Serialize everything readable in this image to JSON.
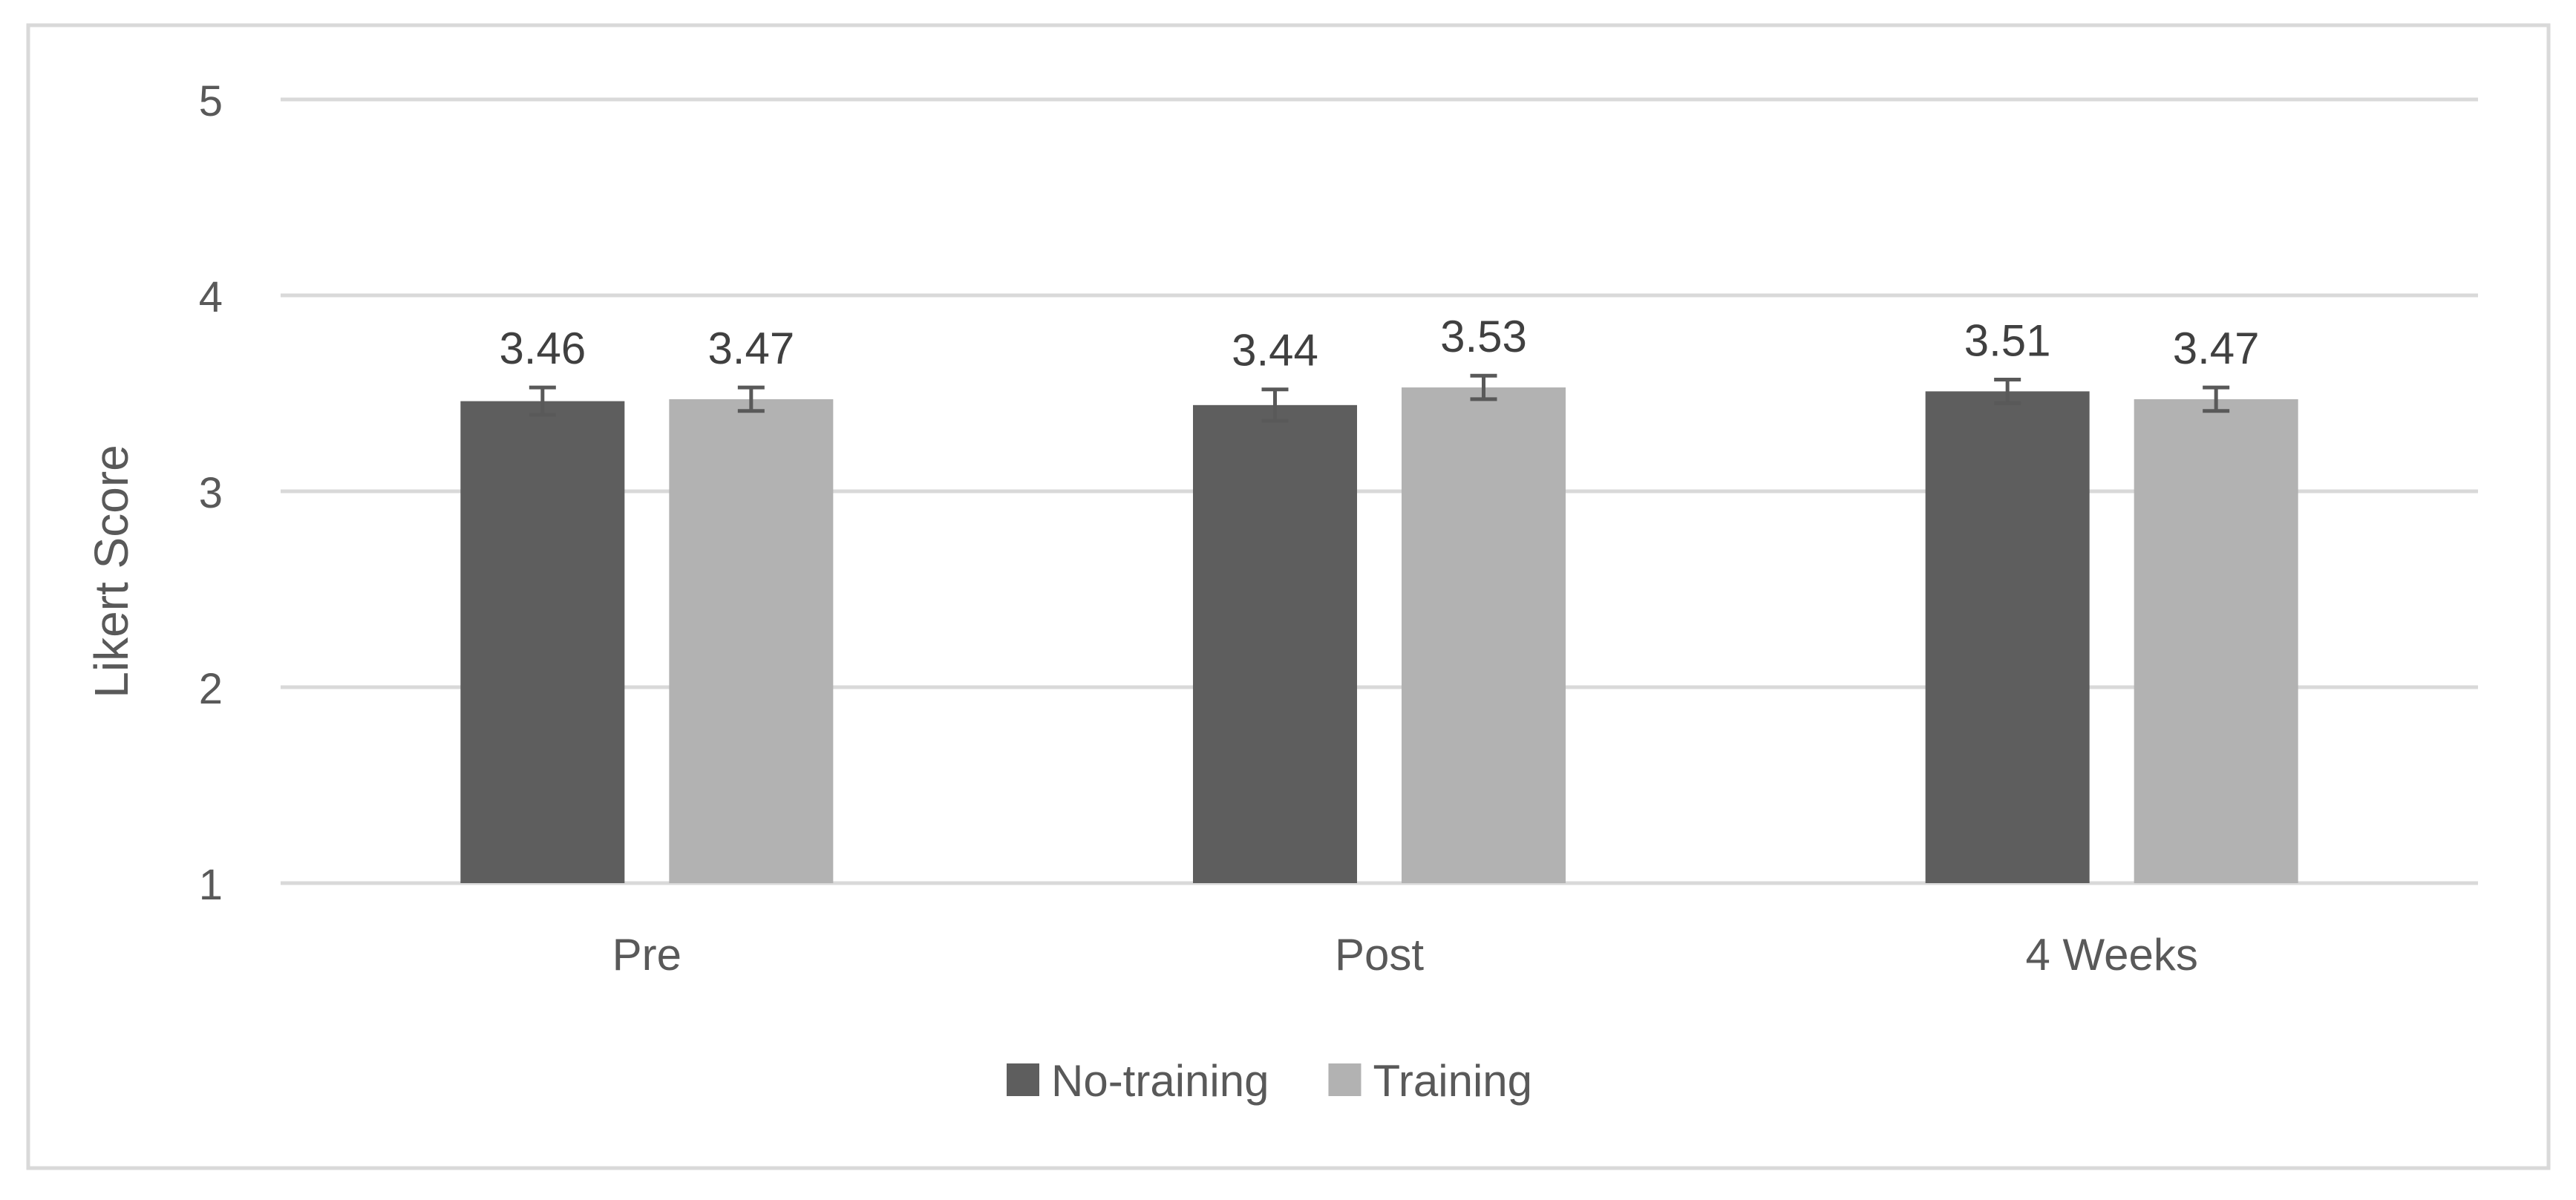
{
  "chart_data": {
    "type": "bar",
    "title": "",
    "xlabel": "",
    "ylabel": "Likert Score",
    "ylim": [
      1,
      5
    ],
    "yticks": [
      "1",
      "2",
      "3",
      "4",
      "5"
    ],
    "categories": [
      "Pre",
      "Post",
      "4 Weeks"
    ],
    "series": [
      {
        "name": "No-training",
        "color": "#5e5e5e",
        "values": [
          3.46,
          3.44,
          3.51
        ],
        "labels": [
          "3.46",
          "3.44",
          "3.51"
        ],
        "error": [
          0.07,
          0.08,
          0.06
        ]
      },
      {
        "name": "Training",
        "color": "#b2b2b2",
        "values": [
          3.47,
          3.53,
          3.47
        ],
        "labels": [
          "3.47",
          "3.53",
          "3.47"
        ],
        "error": [
          0.06,
          0.06,
          0.06
        ]
      }
    ],
    "grid": true,
    "legend_position": "bottom",
    "colors": {
      "gridline": "#d9d9d9",
      "text": "#595959",
      "error_bar": "#595959",
      "border": "#d9d9d9"
    }
  }
}
